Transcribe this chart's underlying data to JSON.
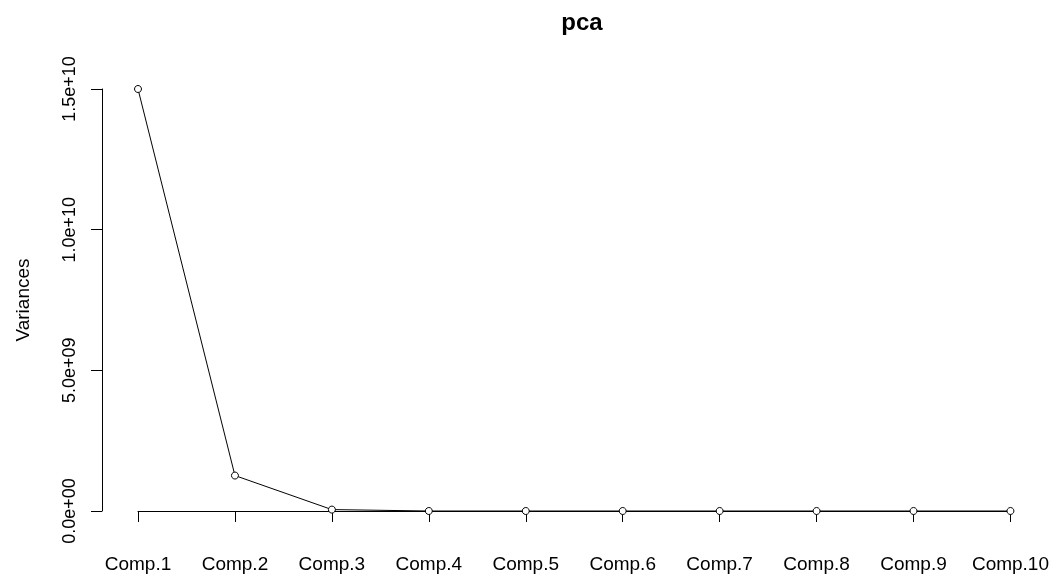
{
  "chart_data": {
    "type": "line",
    "title": "pca",
    "ylabel": "Variances",
    "categories": [
      "Comp.1",
      "Comp.2",
      "Comp.3",
      "Comp.4",
      "Comp.5",
      "Comp.6",
      "Comp.7",
      "Comp.8",
      "Comp.9",
      "Comp.10"
    ],
    "values": [
      15000000000,
      1260000000,
      50000000,
      0,
      0,
      0,
      0,
      0,
      0,
      0
    ],
    "color": "#000000",
    "ylim": [
      0,
      15000000000
    ],
    "yticks": [
      {
        "value": 0,
        "label": "0.0e+00"
      },
      {
        "value": 5000000000,
        "label": "5.0e+09"
      },
      {
        "value": 10000000000,
        "label": "1.0e+10"
      },
      {
        "value": 15000000000,
        "label": "1.5e+10"
      }
    ],
    "grid": false,
    "marker": "circle",
    "line_style": "solid"
  }
}
